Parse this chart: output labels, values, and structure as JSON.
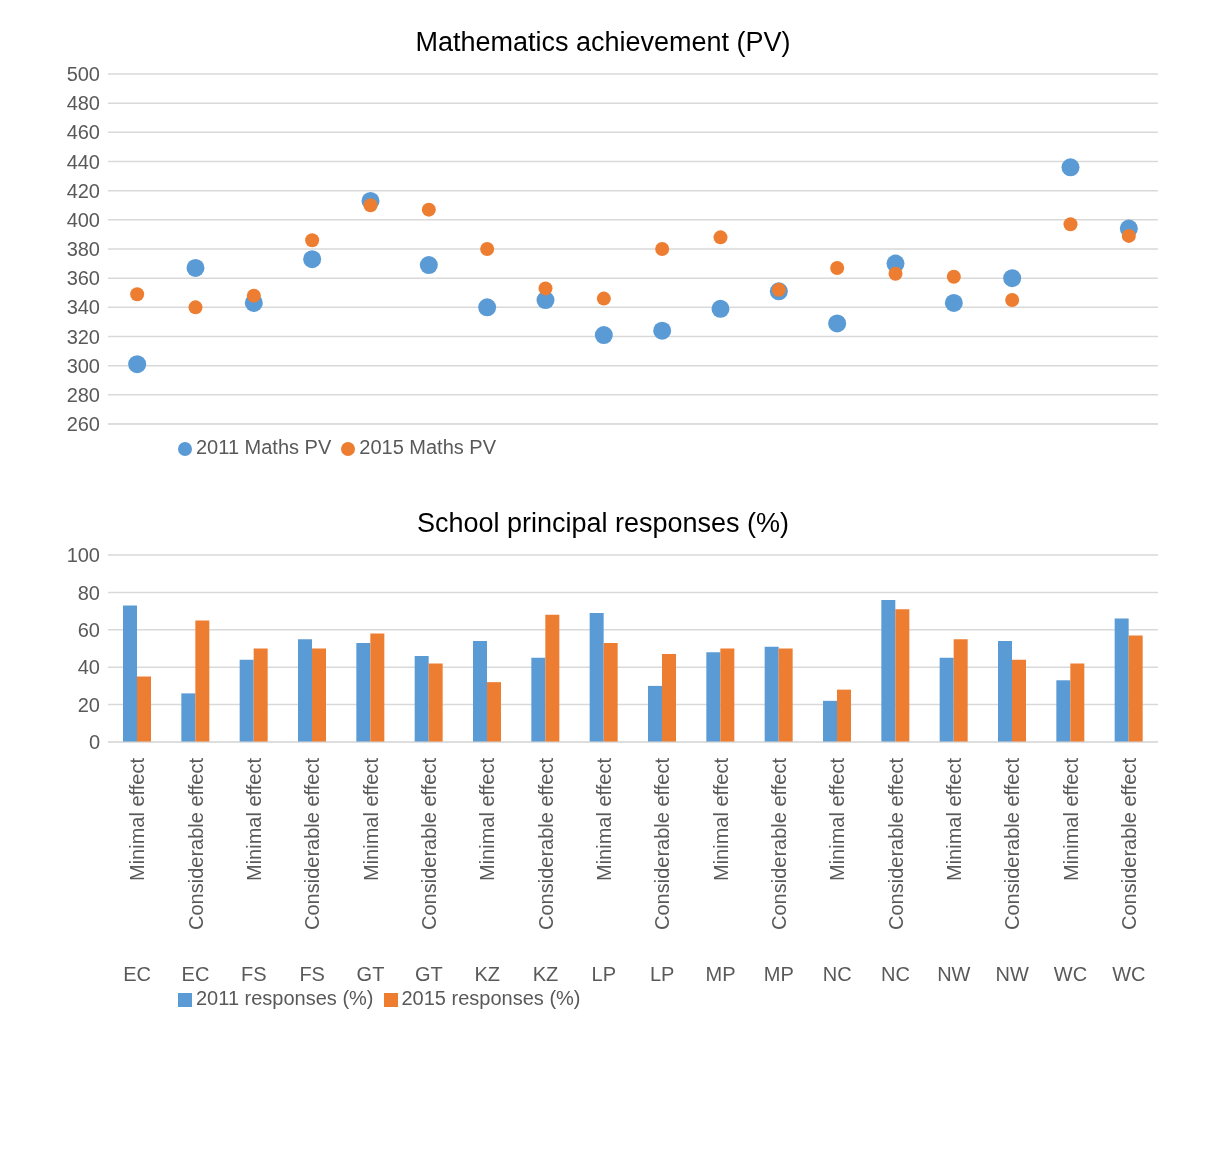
{
  "chart_data": [
    {
      "type": "scatter",
      "title": "Mathematics achievement (PV)",
      "categories": [
        null,
        null,
        null,
        null,
        null,
        null,
        null,
        null,
        null,
        null,
        null,
        null,
        null,
        null,
        null,
        null,
        null,
        null
      ],
      "series": [
        {
          "name": "2011 Maths PV",
          "color": "#5b9bd5",
          "values": [
            301,
            367,
            343,
            373,
            413,
            369,
            340,
            345,
            321,
            324,
            339,
            351,
            329,
            370,
            343,
            360,
            436,
            394
          ]
        },
        {
          "name": "2015 Maths PV",
          "color": "#ed7d31",
          "values": [
            349,
            340,
            348,
            386,
            410,
            407,
            380,
            353,
            346,
            380,
            388,
            352,
            367,
            363,
            361,
            345,
            397,
            389
          ]
        }
      ],
      "ylim": [
        260,
        500
      ],
      "yticks": [
        260,
        280,
        300,
        320,
        340,
        360,
        380,
        400,
        420,
        440,
        460,
        480,
        500
      ],
      "grid": "y",
      "legend": "bottom left",
      "tick_labels": "y",
      "marker": "circle"
    },
    {
      "type": "bar",
      "title": "School principal responses (%)",
      "categories": [
        "Minimal effect",
        "Considerable effect",
        "Minimal effect",
        "Considerable effect",
        "Minimal effect",
        "Considerable effect",
        "Minimal effect",
        "Considerable effect",
        "Minimal effect",
        "Considerable effect",
        "Minimal effect",
        "Considerable effect",
        "Minimal effect",
        "Considerable effect",
        "Minimal effect",
        "Considerable effect",
        "Minimal effect",
        "Considerable effect"
      ],
      "series": [
        {
          "name": "2011 responses (%)",
          "color": "#5b9bd5",
          "values": [
            73,
            26,
            44,
            55,
            53,
            46,
            54,
            45,
            69,
            30,
            48,
            51,
            22,
            76,
            45,
            54,
            33,
            66
          ]
        },
        {
          "name": "2015 responses (%)",
          "color": "#ed7d31",
          "values": [
            35,
            65,
            50,
            50,
            58,
            42,
            32,
            68,
            53,
            47,
            50,
            50,
            28,
            71,
            55,
            44,
            42,
            57
          ]
        }
      ],
      "annotations": [
        "EC",
        "EC",
        "FS",
        "FS",
        "GT",
        "GT",
        "KZ",
        "KZ",
        "LP",
        "LP",
        "MP",
        "MP",
        "NC",
        "NC",
        "NW",
        "NW",
        "WC",
        "WC"
      ],
      "ylim": [
        0,
        100
      ],
      "yticks": [
        0,
        20,
        40,
        60,
        80,
        100
      ],
      "grid": "y",
      "legend": "bottom left"
    }
  ]
}
